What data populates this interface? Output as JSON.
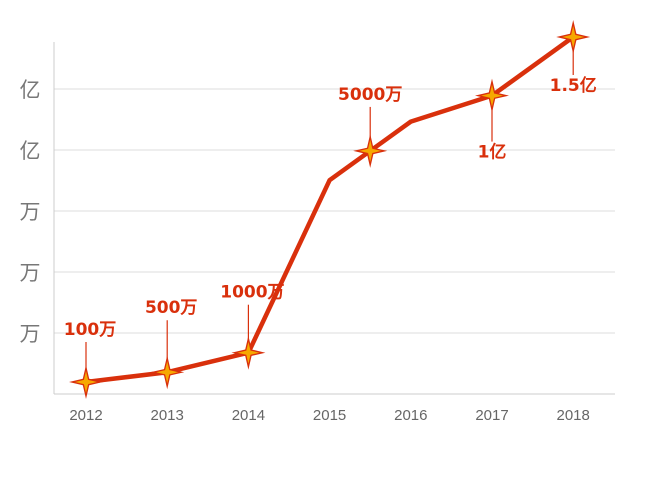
{
  "chart_data": {
    "type": "line",
    "x": [
      2012,
      2013,
      2014,
      2015,
      2016,
      2017,
      2018
    ],
    "x_tick_labels": [
      "2012",
      "2013",
      "2014",
      "2015",
      "2016",
      "2017",
      "2018"
    ],
    "y_tick_labels": [
      "万",
      "万",
      "万",
      "亿",
      "亿"
    ],
    "series": [
      {
        "values_approx_rank": [
          0,
          0.15,
          0.45,
          3.1,
          4.0,
          4.4,
          5.3
        ]
      }
    ],
    "highlighted_points": [
      {
        "x": 2012.0,
        "label": "100万"
      },
      {
        "x": 2013.0,
        "label": "500万"
      },
      {
        "x": 2014.0,
        "label": "1000万"
      },
      {
        "x": 2015.5,
        "label": "5000万"
      },
      {
        "x": 2017.0,
        "label": "1亿"
      },
      {
        "x": 2018.0,
        "label": "1.5亿"
      }
    ],
    "grid": true,
    "colors": {
      "line": "#d9300c",
      "marker_fill": "#f6a800",
      "marker_stroke": "#d9300c",
      "label": "#d9300c"
    }
  }
}
